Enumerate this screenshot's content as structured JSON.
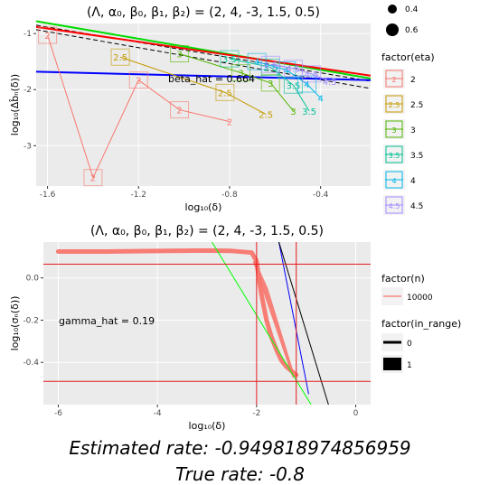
{
  "chart_data": [
    {
      "type": "line",
      "title": "(Λ, α₀, β₀, β₁, β₂) = (2, 4, -3, 1.5, 0.5)",
      "xlabel": "log₁₀(δ)",
      "ylabel": "log₁₀(Δb̂ₙ(δ))",
      "xlim": [
        -1.65,
        -0.18
      ],
      "ylim": [
        -3.72,
        -0.82
      ],
      "xticks": [
        -1.6,
        -1.2,
        -0.8,
        -0.4
      ],
      "xtick_labels": [
        "-1.6",
        "-1.2",
        "-0.8",
        "-0.4"
      ],
      "yticks": [
        -1,
        -2,
        -3
      ],
      "ytick_labels": [
        "-1",
        "-2",
        "-3"
      ],
      "grid": true,
      "annotation": "beta_hat = 0.664",
      "series": [
        {
          "name": "2",
          "color": "#F8766D",
          "marker": "2",
          "x": [
            -1.6,
            -1.4,
            -1.2,
            -1.02,
            -0.8
          ],
          "y": [
            -1.03,
            -3.57,
            -1.83,
            -2.36,
            -2.57
          ]
        },
        {
          "name": "2.5",
          "color": "#C49A00",
          "marker": "2.5",
          "x": [
            -1.28,
            -0.82,
            -0.64
          ],
          "y": [
            -1.42,
            -2.05,
            -2.44
          ]
        },
        {
          "name": "3",
          "color": "#53B400",
          "marker": "3",
          "x": [
            -1.02,
            -0.75,
            -0.62,
            -0.52
          ],
          "y": [
            -1.36,
            -1.7,
            -1.88,
            -2.38
          ]
        },
        {
          "name": "3.5",
          "color": "#00C094",
          "marker": "3.5",
          "x": [
            -0.8,
            -0.62,
            -0.52,
            -0.45
          ],
          "y": [
            -1.45,
            -1.6,
            -1.92,
            -2.38
          ]
        },
        {
          "name": "4",
          "color": "#00B6EB",
          "marker": "4",
          "x": [
            -0.68,
            -0.55,
            -0.46,
            -0.4
          ],
          "y": [
            -1.5,
            -1.65,
            -1.9,
            -2.15
          ]
        },
        {
          "name": "4.5",
          "color": "#A58AFF",
          "marker": "4.5",
          "x": [
            -0.62,
            -0.52,
            -0.44,
            -0.36
          ],
          "y": [
            -1.55,
            -1.62,
            -1.72,
            -1.85
          ]
        }
      ],
      "reference_lines": {
        "blue": {
          "color": "#0000FF",
          "x": [
            -1.65,
            -0.18
          ],
          "y": [
            -1.68,
            -1.83
          ]
        },
        "red": {
          "color": "#FF0000",
          "x": [
            -1.65,
            -0.18
          ],
          "y": [
            -0.88,
            -1.75
          ]
        },
        "green": {
          "color": "#00DD00",
          "x": [
            -1.65,
            -0.18
          ],
          "y": [
            -0.78,
            -1.8
          ]
        },
        "dashed1": {
          "color": "#000000",
          "x": [
            -1.65,
            -0.18
          ],
          "y": [
            -0.85,
            -1.85
          ]
        },
        "dashed2": {
          "color": "#000000",
          "x": [
            -1.65,
            -0.18
          ],
          "y": [
            -0.93,
            -1.98
          ]
        }
      },
      "size_legend": {
        "values": [
          "0.4",
          "0.6"
        ]
      },
      "legend_title": "factor(eta)",
      "legend_entries": [
        "2",
        "2.5",
        "3",
        "3.5",
        "4",
        "4.5"
      ]
    },
    {
      "type": "line",
      "title": "(Λ, α₀, β₀, β₁, β₂) = (2, 4, -3, 1.5, 0.5)",
      "xlabel": "log₁₀(δ)",
      "ylabel": "log₁₀(σₙ(δ))",
      "xlim": [
        -6.3,
        0.3
      ],
      "ylim": [
        -0.6,
        0.17
      ],
      "xticks": [
        -6,
        -4,
        -2,
        0
      ],
      "xtick_labels": [
        "-6",
        "-4",
        "-2",
        "0"
      ],
      "yticks": [
        0.0,
        -0.2,
        -0.4
      ],
      "ytick_labels": [
        "0.0",
        "-0.2",
        "-0.4"
      ],
      "grid": true,
      "annotation": "gamma_hat = 0.19",
      "hlines": [
        0.065,
        -0.49
      ],
      "vlines": [
        -2.0,
        -1.2
      ],
      "curve": {
        "x": [
          -6.0,
          -5.0,
          -4.0,
          -3.0,
          -2.5,
          -2.1,
          -2.0,
          -1.95,
          -1.9,
          -1.85,
          -1.8,
          -1.7,
          -1.6,
          -1.5,
          -1.4,
          -1.3,
          -1.2
        ],
        "y": [
          0.125,
          0.125,
          0.128,
          0.13,
          0.128,
          0.12,
          0.08,
          -0.01,
          -0.08,
          -0.14,
          -0.2,
          -0.28,
          -0.34,
          -0.39,
          -0.42,
          -0.44,
          -0.46
        ]
      },
      "lines": [
        {
          "color": "#00FF00",
          "x": [
            -2.9,
            -0.9
          ],
          "y": [
            0.17,
            -0.6
          ]
        },
        {
          "color": "#0000FF",
          "x": [
            -1.55,
            -0.95
          ],
          "y": [
            0.17,
            -0.55
          ]
        },
        {
          "color": "#000000",
          "x": [
            -1.55,
            -0.55
          ],
          "y": [
            0.17,
            -0.6
          ]
        }
      ],
      "legend_n_title": "factor(n)",
      "legend_n_entries": [
        "10000"
      ],
      "legend_range_title": "factor(in_range)",
      "legend_range_entries": [
        "0",
        "1"
      ]
    }
  ],
  "footer": {
    "estimated": "Estimated rate: -0.949818974856959",
    "true_rate": "True rate: -0.8"
  }
}
